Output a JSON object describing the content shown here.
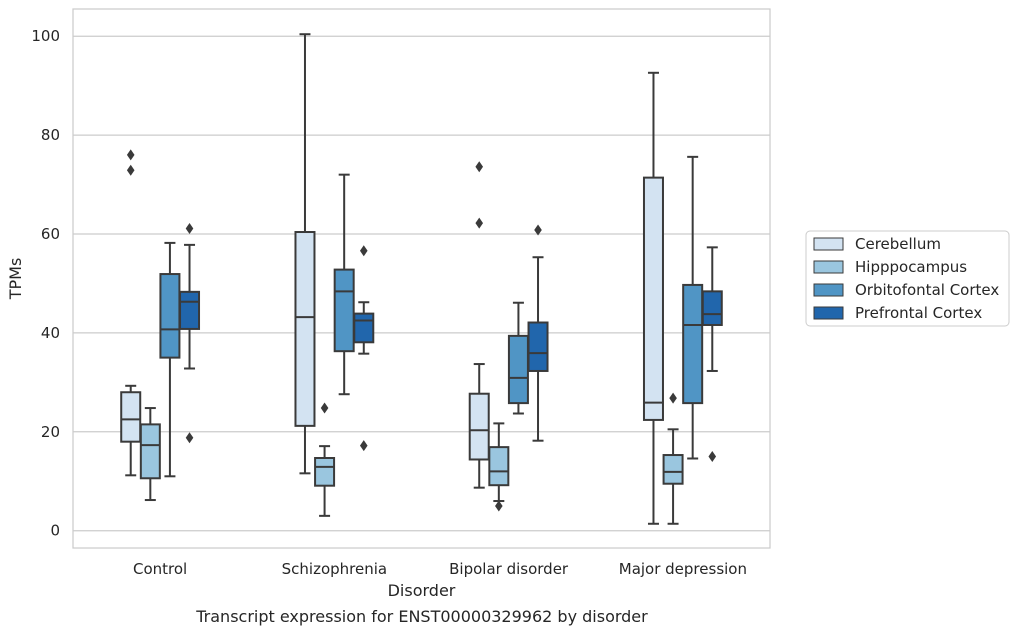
{
  "chart_data": {
    "type": "boxplot",
    "caption": "Transcript expression for ENST00000329962 by disorder",
    "xlabel": "Disorder",
    "ylabel": "TPMs",
    "ylim": [
      -3.5,
      105.5
    ],
    "yticks": [
      0,
      20,
      40,
      60,
      80,
      100
    ],
    "grid": "horizontal",
    "legend_position": "right",
    "categories": [
      "Control",
      "Schizophrenia",
      "Bipolar disorder",
      "Major depression"
    ],
    "series": [
      {
        "name": "Cerebellum",
        "color": "#d3e3f2",
        "boxes": [
          {
            "whisker_low": 11.2,
            "q1": 18.0,
            "median": 22.5,
            "q3": 28.0,
            "whisker_high": 29.3,
            "outliers": [
              76.0,
              72.9
            ]
          },
          {
            "whisker_low": 11.6,
            "q1": 21.2,
            "median": 43.2,
            "q3": 60.4,
            "whisker_high": 100.4,
            "outliers": []
          },
          {
            "whisker_low": 8.7,
            "q1": 14.4,
            "median": 20.3,
            "q3": 27.7,
            "whisker_high": 33.7,
            "outliers": [
              73.6,
              62.2
            ]
          },
          {
            "whisker_low": 1.4,
            "q1": 22.4,
            "median": 25.9,
            "q3": 71.4,
            "whisker_high": 92.6,
            "outliers": []
          }
        ]
      },
      {
        "name": "Hipppocampus",
        "color": "#9ac6df",
        "boxes": [
          {
            "whisker_low": 6.2,
            "q1": 10.6,
            "median": 17.3,
            "q3": 21.5,
            "whisker_high": 24.8,
            "outliers": []
          },
          {
            "whisker_low": 3.0,
            "q1": 9.1,
            "median": 12.9,
            "q3": 14.7,
            "whisker_high": 17.1,
            "outliers": [
              24.8
            ]
          },
          {
            "whisker_low": 6.0,
            "q1": 9.2,
            "median": 12.0,
            "q3": 16.9,
            "whisker_high": 21.7,
            "outliers": [
              5.0
            ]
          },
          {
            "whisker_low": 1.4,
            "q1": 9.5,
            "median": 11.9,
            "q3": 15.3,
            "whisker_high": 20.5,
            "outliers": [
              26.8
            ]
          }
        ]
      },
      {
        "name": "Orbitofontal Cortex",
        "color": "#5095c5",
        "boxes": [
          {
            "whisker_low": 11.0,
            "q1": 35.0,
            "median": 40.7,
            "q3": 51.9,
            "whisker_high": 58.2,
            "outliers": []
          },
          {
            "whisker_low": 27.6,
            "q1": 36.3,
            "median": 48.4,
            "q3": 52.8,
            "whisker_high": 72.0,
            "outliers": []
          },
          {
            "whisker_low": 23.7,
            "q1": 25.8,
            "median": 30.9,
            "q3": 39.4,
            "whisker_high": 46.1,
            "outliers": []
          },
          {
            "whisker_low": 14.6,
            "q1": 25.8,
            "median": 41.6,
            "q3": 49.7,
            "whisker_high": 75.6,
            "outliers": []
          }
        ]
      },
      {
        "name": "Prefrontal Cortex",
        "color": "#2166ac",
        "boxes": [
          {
            "whisker_low": 32.8,
            "q1": 40.8,
            "median": 46.3,
            "q3": 48.3,
            "whisker_high": 57.8,
            "outliers": [
              61.1,
              18.8
            ]
          },
          {
            "whisker_low": 35.8,
            "q1": 38.1,
            "median": 42.5,
            "q3": 43.9,
            "whisker_high": 46.2,
            "outliers": [
              56.6,
              17.2
            ]
          },
          {
            "whisker_low": 18.2,
            "q1": 32.3,
            "median": 35.9,
            "q3": 42.1,
            "whisker_high": 55.3,
            "outliers": [
              60.8
            ]
          },
          {
            "whisker_low": 32.3,
            "q1": 41.6,
            "median": 43.8,
            "q3": 48.4,
            "whisker_high": 57.3,
            "outliers": [
              15.0
            ]
          }
        ]
      }
    ]
  }
}
